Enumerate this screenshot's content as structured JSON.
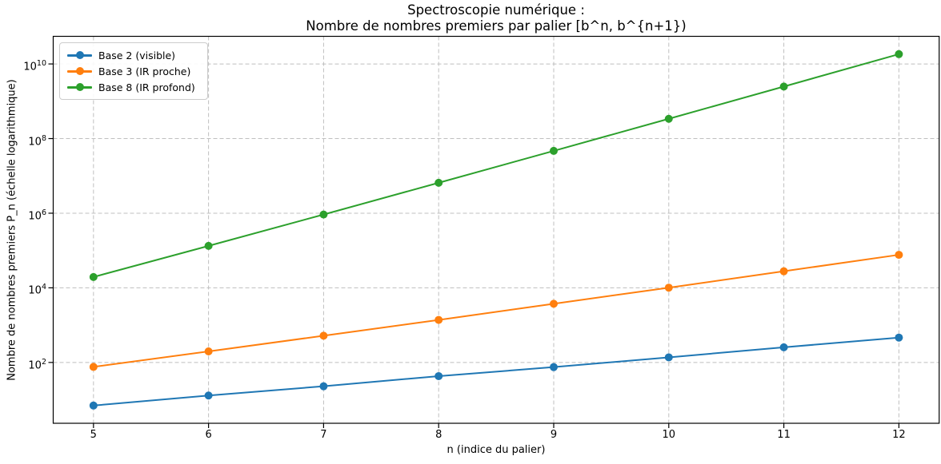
{
  "chart_data": {
    "type": "line",
    "title_line1": "Spectroscopie numérique :",
    "title_line2": "Nombre de nombres premiers par palier [b^n, b^{n+1})",
    "xlabel": "n (indice du palier)",
    "ylabel": "Nombre de nombres premiers P_n (échelle logarithmique)",
    "log_y": true,
    "grid": "dashed",
    "legend_position": "upper-left",
    "x": [
      5,
      6,
      7,
      8,
      9,
      10,
      11,
      12
    ],
    "x_tick_labels": [
      "5",
      "6",
      "7",
      "8",
      "9",
      "10",
      "11",
      "12"
    ],
    "y_tick_exponents": [
      2,
      4,
      6,
      8,
      10
    ],
    "xlim": [
      4.65,
      12.35
    ],
    "ylim_log10": [
      0.37,
      10.74
    ],
    "series": [
      {
        "name": "Base 2 (visible)",
        "color": "#1f77b4",
        "values": [
          7,
          13,
          23,
          43,
          75,
          137,
          255,
          464
        ]
      },
      {
        "name": "Base 3 (IR proche)",
        "color": "#ff7f0e",
        "values": [
          76,
          198,
          520,
          1380,
          3740,
          10100,
          27800,
          76700
        ]
      },
      {
        "name": "Base 8 (IR profond)",
        "color": "#2ca02c",
        "values": [
          19500,
          133000,
          922000,
          6530000,
          46800000,
          339000000,
          2480000000,
          18300000000
        ]
      }
    ],
    "colors": {
      "grid": "#bfbfbf",
      "spine": "#000000",
      "background": "#ffffff"
    }
  }
}
